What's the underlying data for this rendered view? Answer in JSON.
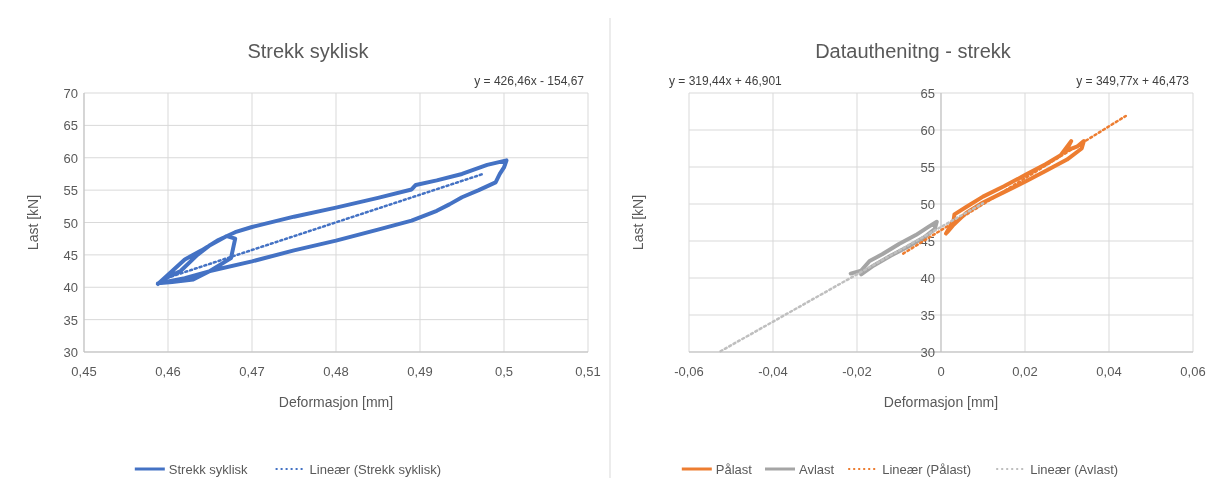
{
  "chart_data": [
    {
      "type": "line",
      "title": "Strekk syklisk",
      "xlabel": "Deformasjon [mm]",
      "ylabel": "Last [kN]",
      "xlim": [
        0.45,
        0.51
      ],
      "xticks": [
        {
          "value": 0.45,
          "label": "0,45"
        },
        {
          "value": 0.46,
          "label": "0,46"
        },
        {
          "value": 0.47,
          "label": "0,47"
        },
        {
          "value": 0.48,
          "label": "0,48"
        },
        {
          "value": 0.49,
          "label": "0,49"
        },
        {
          "value": 0.5,
          "label": "0,5"
        },
        {
          "value": 0.51,
          "label": "0,51"
        }
      ],
      "ylim": [
        30,
        70
      ],
      "yticks": [
        30,
        35,
        40,
        45,
        50,
        55,
        60,
        65,
        70
      ],
      "grid": true,
      "legend": "bottom",
      "annotations": [
        "y = 426,46x - 154,67"
      ],
      "series": [
        {
          "name": "Strekk syklisk",
          "color": "#4472c4",
          "line_style": "solid",
          "x": [
            0.4588,
            0.4605,
            0.462,
            0.464,
            0.466,
            0.468,
            0.47,
            0.475,
            0.48,
            0.485,
            0.489,
            0.4895,
            0.492,
            0.495,
            0.498,
            0.5003,
            0.5,
            0.4995,
            0.499,
            0.497,
            0.495,
            0.4935,
            0.492,
            0.489,
            0.485,
            0.48,
            0.475,
            0.47,
            0.465,
            0.462,
            0.46,
            0.4588,
            0.4605,
            0.463,
            0.465,
            0.4675,
            0.468,
            0.467,
            0.465,
            0.4635,
            0.4615,
            0.4595
          ],
          "values": [
            40.5,
            42.5,
            44.3,
            45.7,
            47.3,
            48.5,
            49.3,
            50.9,
            52.3,
            53.8,
            55.1,
            55.8,
            56.5,
            57.5,
            58.9,
            59.6,
            58.5,
            57.5,
            56.2,
            55,
            53.9,
            52.8,
            51.8,
            50.3,
            48.9,
            47.2,
            45.7,
            44,
            42.5,
            41.4,
            40.9,
            40.6,
            40.8,
            41.2,
            42.5,
            44.5,
            47.5,
            47.9,
            46.5,
            45,
            42.5,
            41.3
          ]
        },
        {
          "name": "Lineær (Strekk syklisk)",
          "color": "#4472c4",
          "type": "line",
          "line_style": "dotted",
          "x": [
            0.4598,
            0.4975
          ],
          "values": [
            41.4,
            57.5
          ]
        }
      ]
    },
    {
      "type": "line",
      "title": "Datauthenitng - strekk",
      "xlabel": "Deformasjon [mm]",
      "ylabel": "Last [kN]",
      "xlim": [
        -0.06,
        0.06
      ],
      "xticks": [
        {
          "value": -0.06,
          "label": "-0,06"
        },
        {
          "value": -0.04,
          "label": "-0,04"
        },
        {
          "value": -0.02,
          "label": "-0,02"
        },
        0,
        {
          "value": 0.02,
          "label": "0,02"
        },
        {
          "value": 0.04,
          "label": "0,04"
        },
        {
          "value": 0.06,
          "label": "0,06"
        }
      ],
      "ylim": [
        30,
        65
      ],
      "yticks": [
        30,
        35,
        40,
        45,
        50,
        55,
        60,
        65
      ],
      "grid": true,
      "legend": "bottom",
      "annotations": [
        "y = 319,44x + 46,901",
        "y = 349,77x + 46,473"
      ],
      "series": [
        {
          "name": "Pålast",
          "color": "#ed7d31",
          "line_style": "solid",
          "x": [
            0.0012,
            0.003,
            0.0032,
            0.006,
            0.01,
            0.015,
            0.02,
            0.025,
            0.0285,
            0.031,
            0.0298,
            0.0325,
            0.034,
            0.0335,
            0.03,
            0.025,
            0.02,
            0.015,
            0.01,
            0.006,
            0.003,
            0.0015
          ],
          "values": [
            46,
            47.8,
            48.6,
            49.6,
            51,
            52.4,
            53.9,
            55.4,
            56.6,
            58.5,
            57.2,
            57.8,
            58.5,
            57.5,
            56,
            54.5,
            53,
            51.6,
            50.2,
            48.8,
            47.2,
            46.2
          ]
        },
        {
          "name": "Avlast",
          "color": "#a5a5a5",
          "line_style": "solid",
          "x": [
            -0.0215,
            -0.019,
            -0.017,
            -0.014,
            -0.01,
            -0.006,
            -0.003,
            -0.001,
            -0.0015,
            -0.004,
            -0.008,
            -0.012,
            -0.016,
            -0.019
          ],
          "values": [
            40.6,
            41,
            42.3,
            43.2,
            44.6,
            45.8,
            46.9,
            47.6,
            46.6,
            45.5,
            44.2,
            43,
            41.7,
            40.5
          ]
        },
        {
          "name": "Lineær (Pålast)",
          "color": "#ed7d31",
          "line_style": "dotted",
          "x": [
            -0.009,
            0.044
          ],
          "values": [
            43.3,
            61.9
          ]
        },
        {
          "name": "Lineær (Avlast)",
          "color": "#bfbfbf",
          "line_style": "dotted",
          "x": [
            -0.0525,
            0.01
          ],
          "values": [
            30.1,
            50.1
          ]
        }
      ]
    }
  ]
}
